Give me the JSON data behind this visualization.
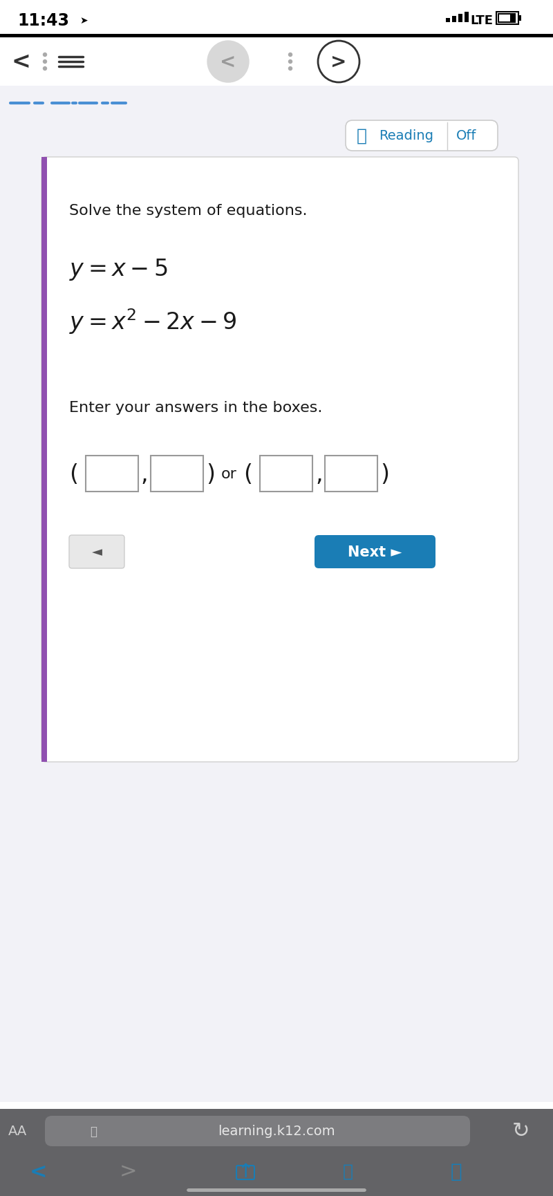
{
  "bg_white": "#ffffff",
  "bg_light": "#f2f2f7",
  "bg_gray": "#e8e8ed",
  "black": "#000000",
  "dark_gray": "#333333",
  "mid_gray": "#666666",
  "light_gray": "#aaaaaa",
  "blue": "#1a7db5",
  "purple": "#9050b0",
  "dashed_blue": "#4a8fd4",
  "status_time": "11:43",
  "lte_text": "LTE",
  "title_text": "Solve the system of equations.",
  "eq1_text": "$y = x - 5$",
  "eq2_text": "$y = x^2 - 2x - 9$",
  "instruction_text": "Enter your answers in the boxes.",
  "or_text": "or",
  "next_text": "Next ►",
  "next_btn_color": "#1a7db5",
  "back_btn_color": "#e8e8e8",
  "reading_text": "Reading",
  "off_text": "Off",
  "url_text": "learning.k12.com",
  "box_border": "#999999",
  "bottom_toolbar_bg": "#636366",
  "bottom_icons_bg": "#636366"
}
